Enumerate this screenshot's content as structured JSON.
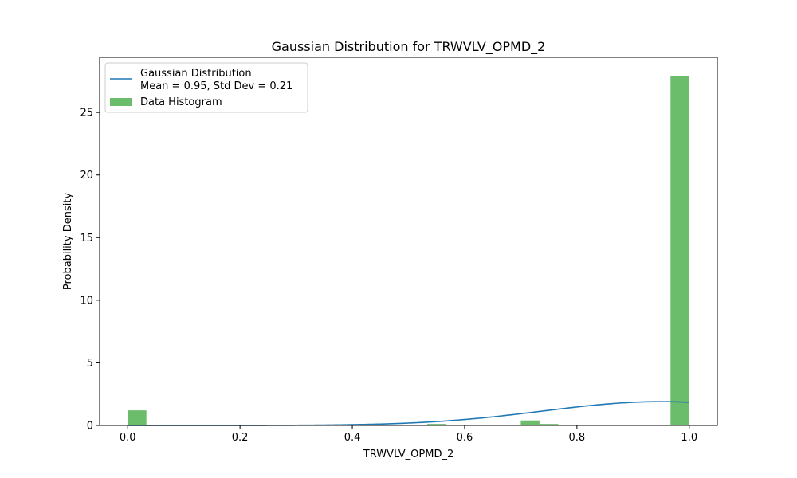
{
  "chart_data": {
    "type": "bar",
    "title": "Gaussian Distribution for TRWVLV_OPMD_2",
    "xlabel": "TRWVLV_OPMD_2",
    "ylabel": "Probability Density",
    "xlim": [
      -0.05,
      1.05
    ],
    "ylim": [
      0,
      29.4
    ],
    "xticks": [
      0.0,
      0.2,
      0.4,
      0.6,
      0.8,
      1.0
    ],
    "xtick_labels": [
      "0.0",
      "0.2",
      "0.4",
      "0.6",
      "0.8",
      "1.0"
    ],
    "yticks": [
      0,
      5,
      10,
      15,
      20,
      25
    ],
    "ytick_labels": [
      "0",
      "5",
      "10",
      "15",
      "20",
      "25"
    ],
    "grid": false,
    "legend_position": "top-left",
    "histogram": {
      "name": "Data Histogram",
      "color": "#2ca02c",
      "bin_width": 0.0333,
      "bins": [
        {
          "x0": 0.0,
          "x1": 0.0333,
          "density": 1.2
        },
        {
          "x0": 0.5333,
          "x1": 0.5667,
          "density": 0.12
        },
        {
          "x0": 0.7,
          "x1": 0.7333,
          "density": 0.4
        },
        {
          "x0": 0.7333,
          "x1": 0.7667,
          "density": 0.12
        },
        {
          "x0": 0.9667,
          "x1": 1.0,
          "density": 27.9
        }
      ]
    },
    "gaussian": {
      "name": "Gaussian Distribution",
      "legend_line2": "Mean = 0.95, Std Dev = 0.21",
      "mean": 0.95,
      "std": 0.21,
      "x_range": [
        0.0,
        1.0
      ],
      "color": "#1f77b4"
    }
  }
}
